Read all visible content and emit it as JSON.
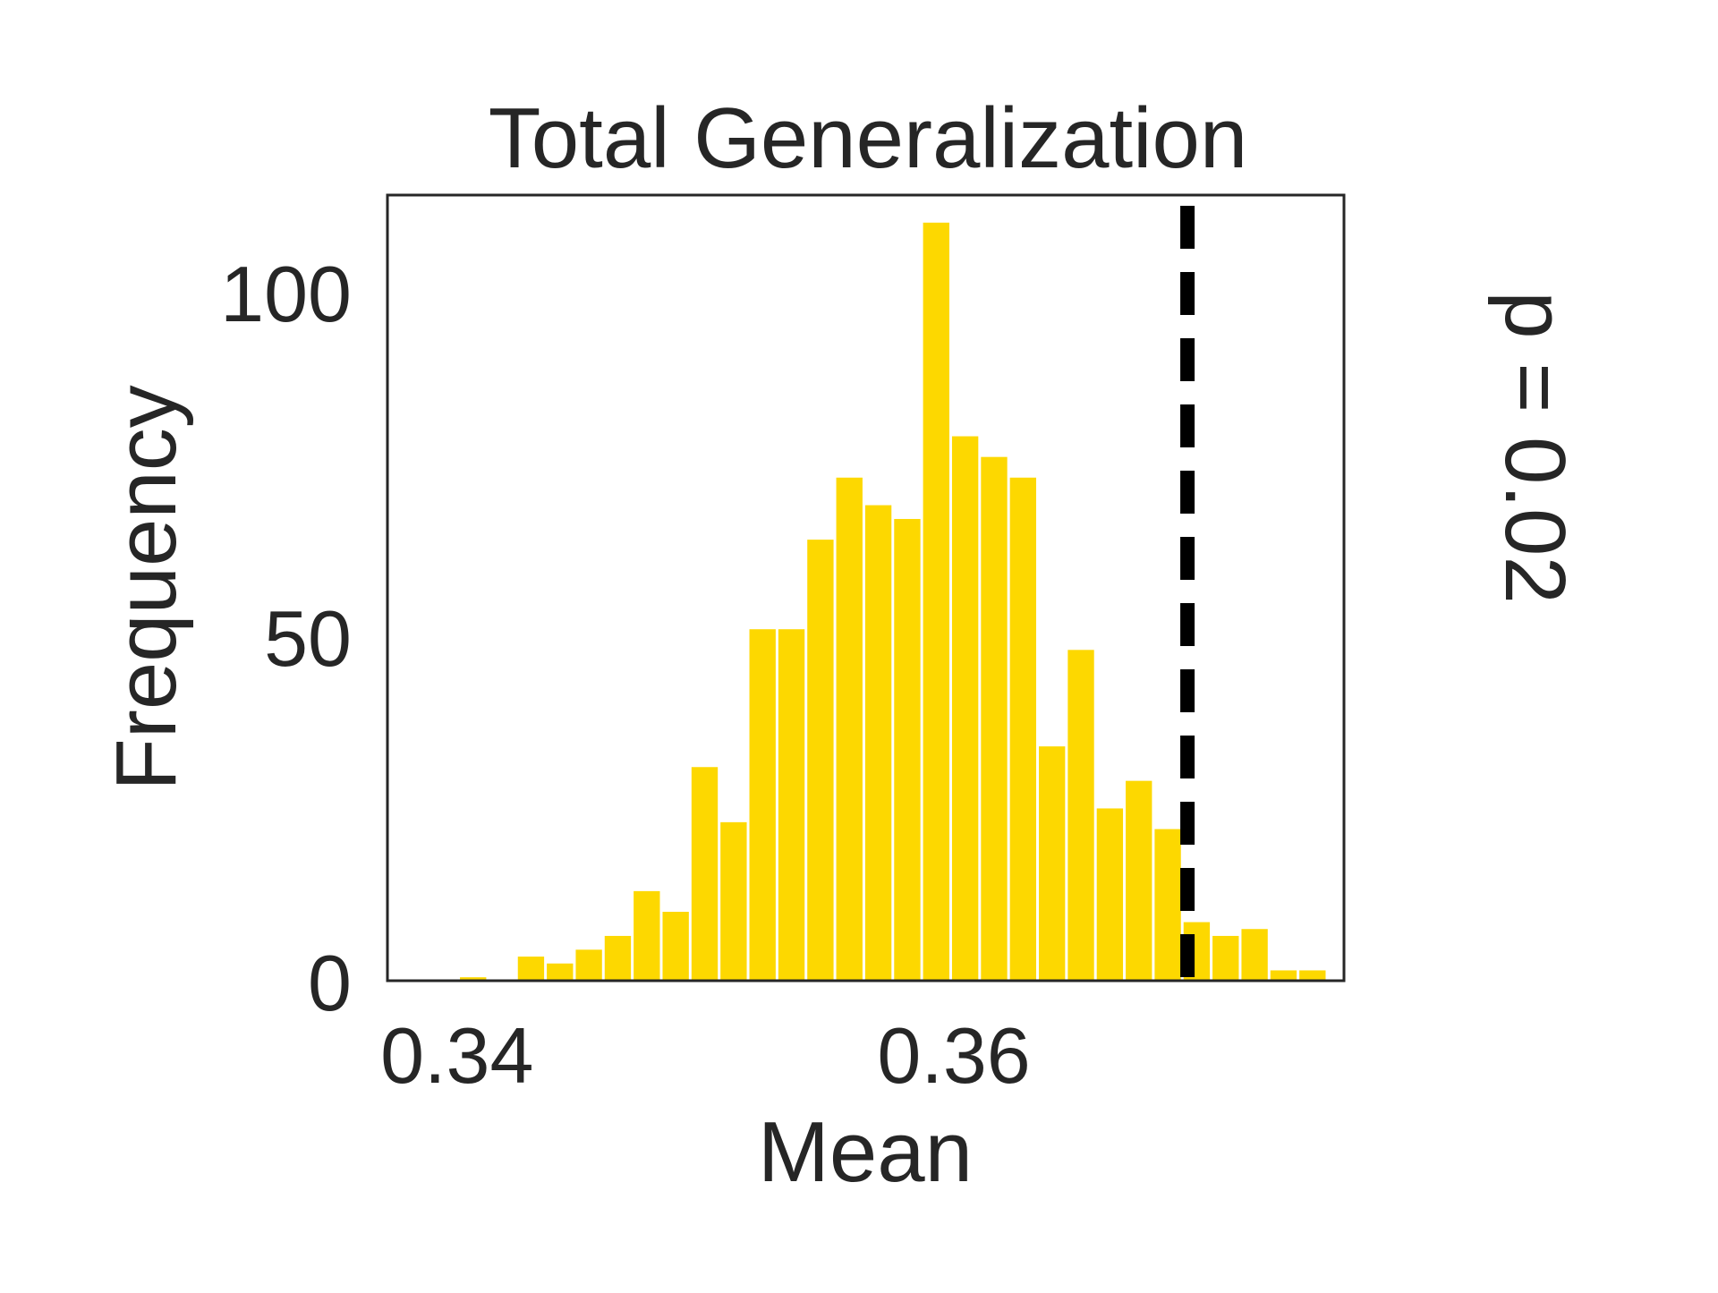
{
  "chart_data": {
    "type": "bar",
    "title": "Total Generalization",
    "xlabel": "Mean",
    "ylabel": "Frequency",
    "annotation": "p = 0.02",
    "xlim": [
      0.3372,
      0.3757
    ],
    "ylim": [
      0,
      114
    ],
    "xticks": [
      {
        "value": 0.34,
        "label": "0.34"
      },
      {
        "value": 0.36,
        "label": "0.36"
      }
    ],
    "yticks": [
      {
        "value": 0,
        "label": "0"
      },
      {
        "value": 50,
        "label": "50"
      },
      {
        "value": 100,
        "label": "100"
      }
    ],
    "bin_start": 0.3389,
    "bin_width": 0.001165,
    "values": [
      0,
      0.5,
      0,
      3.5,
      2.5,
      4.5,
      6.5,
      13,
      10,
      31,
      23,
      51,
      51,
      64,
      73,
      69,
      67,
      110,
      79,
      76,
      73,
      34,
      48,
      25,
      29,
      22,
      8.5,
      6.5,
      7.5,
      1.5,
      1.5
    ],
    "observed_value": 0.3694,
    "colors": {
      "bar": "#fdd800",
      "observed_line": "#000000",
      "text": "#262626",
      "frame": "#262626"
    }
  }
}
